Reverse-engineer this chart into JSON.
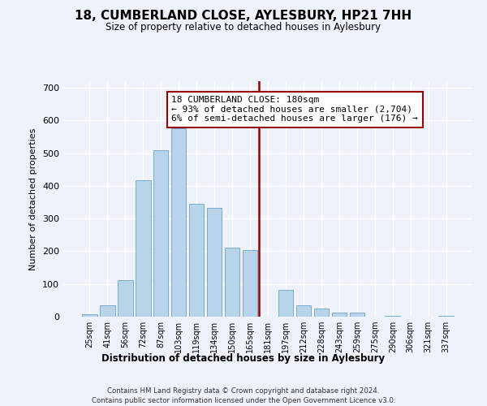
{
  "title": "18, CUMBERLAND CLOSE, AYLESBURY, HP21 7HH",
  "subtitle": "Size of property relative to detached houses in Aylesbury",
  "xlabel": "Distribution of detached houses by size in Aylesbury",
  "ylabel": "Number of detached properties",
  "bar_color": "#b8d4ea",
  "bar_edge_color": "#7aaaca",
  "categories": [
    "25sqm",
    "41sqm",
    "56sqm",
    "72sqm",
    "87sqm",
    "103sqm",
    "119sqm",
    "134sqm",
    "150sqm",
    "165sqm",
    "181sqm",
    "197sqm",
    "212sqm",
    "228sqm",
    "243sqm",
    "259sqm",
    "275sqm",
    "290sqm",
    "306sqm",
    "321sqm",
    "337sqm"
  ],
  "values": [
    8,
    35,
    112,
    417,
    508,
    575,
    345,
    333,
    210,
    204,
    0,
    83,
    36,
    26,
    13,
    13,
    0,
    3,
    0,
    0,
    2
  ],
  "vline_color": "#990000",
  "annotation_title": "18 CUMBERLAND CLOSE: 180sqm",
  "annotation_line1": "← 93% of detached houses are smaller (2,704)",
  "annotation_line2": "6% of semi-detached houses are larger (176) →",
  "ylim": [
    0,
    720
  ],
  "yticks": [
    0,
    100,
    200,
    300,
    400,
    500,
    600,
    700
  ],
  "footer1": "Contains HM Land Registry data © Crown copyright and database right 2024.",
  "footer2": "Contains public sector information licensed under the Open Government Licence v3.0.",
  "background_color": "#eef2fa"
}
